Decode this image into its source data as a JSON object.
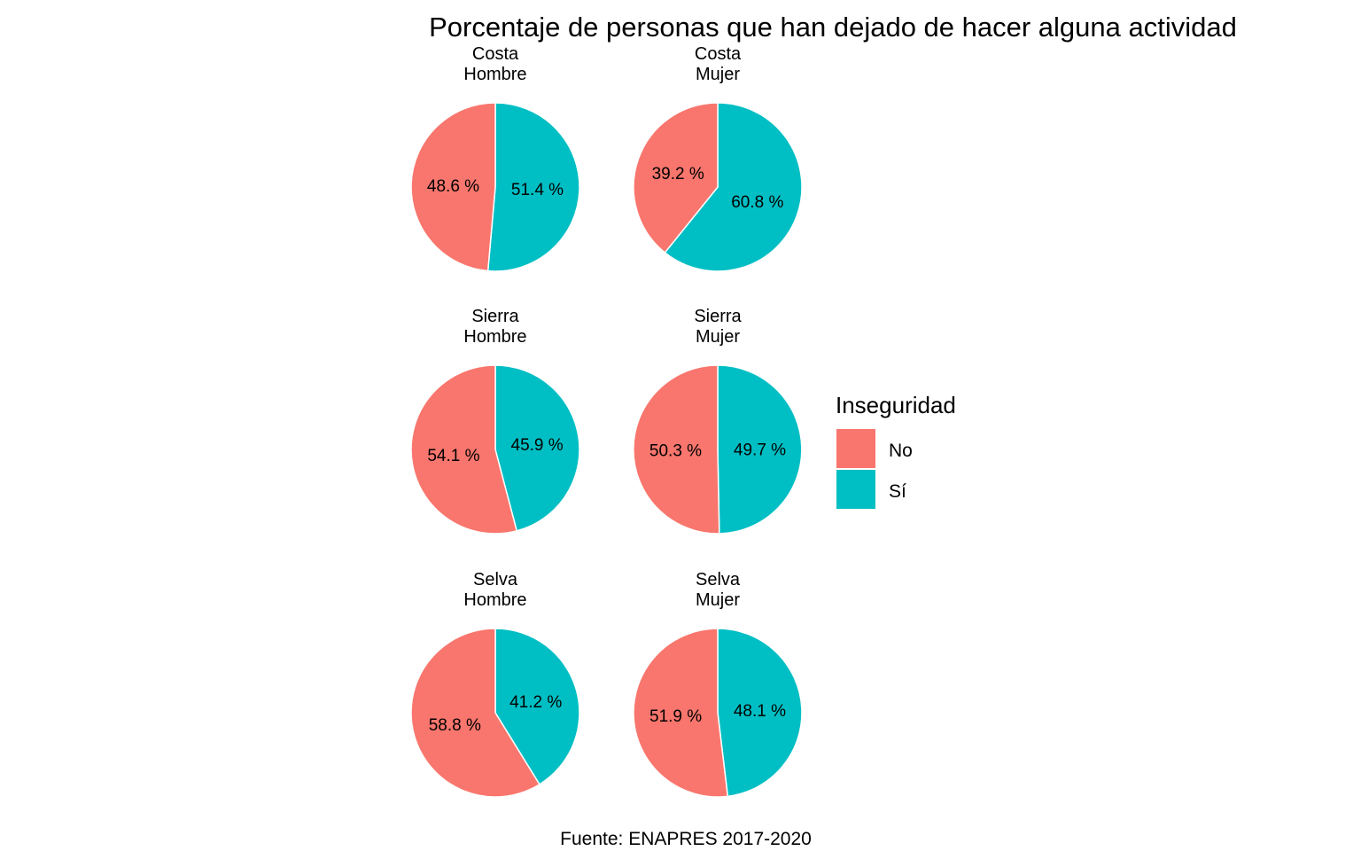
{
  "chart_data": {
    "type": "pie",
    "title": "Porcentaje de personas que han dejado de hacer alguna actividad",
    "caption": "Fuente: ENAPRES 2017-2020",
    "legend": {
      "title": "Inseguridad",
      "position": "right",
      "entries": [
        {
          "label": "No",
          "color": "#F8766D"
        },
        {
          "label": "Sí",
          "color": "#00BFC4"
        }
      ]
    },
    "label_suffix": " %",
    "facets": [
      {
        "region": "Costa",
        "sexo": "Hombre",
        "values": [
          48.6,
          51.4
        ]
      },
      {
        "region": "Costa",
        "sexo": "Mujer",
        "values": [
          39.2,
          60.8
        ]
      },
      {
        "region": "Sierra",
        "sexo": "Hombre",
        "values": [
          54.1,
          45.9
        ]
      },
      {
        "region": "Sierra",
        "sexo": "Mujer",
        "values": [
          50.3,
          49.7
        ]
      },
      {
        "region": "Selva",
        "sexo": "Hombre",
        "values": [
          58.8,
          41.2
        ]
      },
      {
        "region": "Selva",
        "sexo": "Mujer",
        "values": [
          51.9,
          48.1
        ]
      }
    ]
  }
}
